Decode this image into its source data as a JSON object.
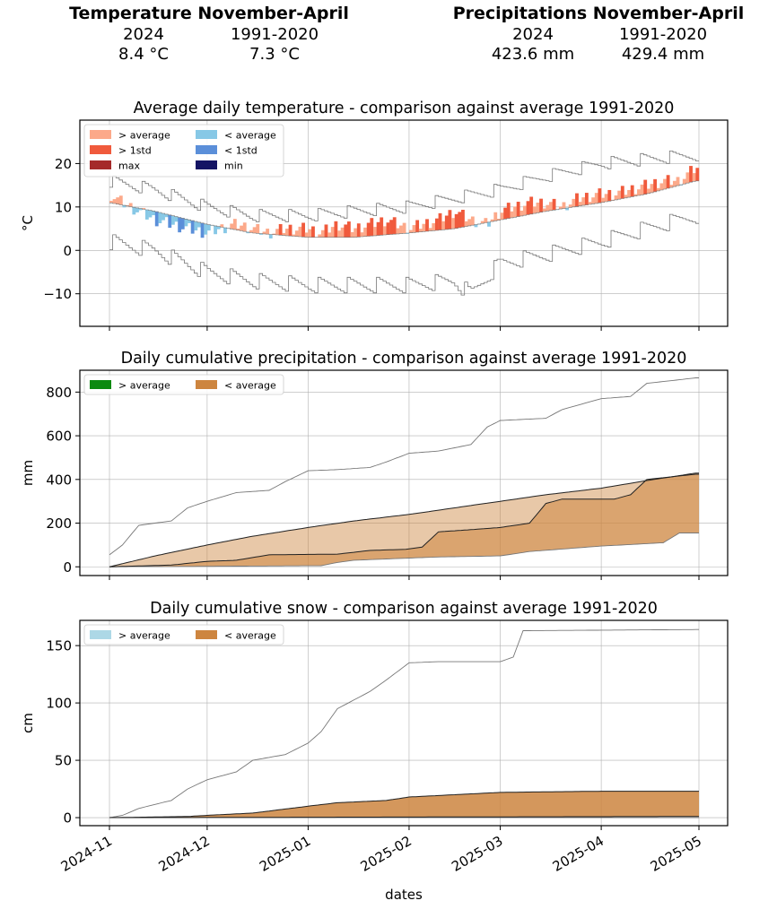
{
  "summary": {
    "temperature": {
      "heading": "Temperature November-April",
      "col1": "2024",
      "col2": "1991-2020",
      "val1": "8.4 °C",
      "val2": "7.3 °C"
    },
    "precipitation": {
      "heading": "Precipitations November-April",
      "col1": "2024",
      "col2": "1991-2020",
      "val1": "423.6 mm",
      "val2": "429.4 mm"
    }
  },
  "xaxis": {
    "label": "dates",
    "ticks": [
      "2024-11",
      "2024-12",
      "2025-01",
      "2025-02",
      "2025-03",
      "2025-04",
      "2025-05"
    ]
  },
  "colors": {
    "above_avg": "#fca98a",
    "above_std": "#f05a3c",
    "max": "#a52a2a",
    "below_avg": "#87c8e6",
    "below_std": "#5b8fd9",
    "min": "#141464",
    "prec_above": "#0b8a10",
    "prec_below": "#cd853f",
    "snow_above": "#add8e6",
    "snow_below": "#cd853f"
  },
  "chart_data": [
    {
      "type": "line",
      "title": "Average daily temperature - comparison against average 1991-2020",
      "xlabel": "",
      "ylabel": "°C",
      "ylim": [
        -17.5,
        30
      ],
      "yticks": [
        -10,
        0,
        10,
        20
      ],
      "legend": [
        "> average",
        "> 1std",
        "max",
        "< average",
        "< 1std",
        "min"
      ],
      "legend_position": "top-left",
      "grid": true,
      "x_start": "2024-11-01",
      "x_end": "2025-04-30",
      "series": [
        {
          "name": "2024",
          "points": [
            [
              "2024-11-01",
              13
            ],
            [
              "2024-11-05",
              11
            ],
            [
              "2024-11-10",
              9
            ],
            [
              "2024-11-15",
              7
            ],
            [
              "2024-11-20",
              6
            ],
            [
              "2024-11-25",
              5
            ],
            [
              "2024-12-01",
              4
            ],
            [
              "2024-12-05",
              5
            ],
            [
              "2024-12-10",
              6
            ],
            [
              "2024-12-15",
              5
            ],
            [
              "2024-12-20",
              4
            ],
            [
              "2024-12-25",
              5
            ],
            [
              "2025-01-01",
              5
            ],
            [
              "2025-01-05",
              4
            ],
            [
              "2025-01-10",
              6
            ],
            [
              "2025-01-15",
              5
            ],
            [
              "2025-01-20",
              6
            ],
            [
              "2025-01-25",
              7
            ],
            [
              "2025-02-01",
              5
            ],
            [
              "2025-02-05",
              6
            ],
            [
              "2025-02-10",
              7
            ],
            [
              "2025-02-15",
              9
            ],
            [
              "2025-02-20",
              7
            ],
            [
              "2025-02-25",
              6
            ],
            [
              "2025-03-01",
              9
            ],
            [
              "2025-03-05",
              10
            ],
            [
              "2025-03-10",
              11
            ],
            [
              "2025-03-15",
              11
            ],
            [
              "2025-03-20",
              10
            ],
            [
              "2025-03-25",
              12
            ],
            [
              "2025-04-01",
              13
            ],
            [
              "2025-04-05",
              13
            ],
            [
              "2025-04-10",
              14
            ],
            [
              "2025-04-15",
              15
            ],
            [
              "2025-04-20",
              16
            ],
            [
              "2025-04-25",
              16
            ],
            [
              "2025-04-30",
              19
            ]
          ]
        },
        {
          "name": "average 1991-2020",
          "points": [
            [
              "2024-11-01",
              11
            ],
            [
              "2024-11-15",
              9
            ],
            [
              "2024-12-01",
              6
            ],
            [
              "2024-12-15",
              4
            ],
            [
              "2025-01-01",
              3
            ],
            [
              "2025-01-15",
              3
            ],
            [
              "2025-02-01",
              4
            ],
            [
              "2025-02-15",
              5
            ],
            [
              "2025-03-01",
              7
            ],
            [
              "2025-03-15",
              9
            ],
            [
              "2025-04-01",
              11
            ],
            [
              "2025-04-15",
              13
            ],
            [
              "2025-04-30",
              16
            ]
          ]
        },
        {
          "name": "max",
          "points": [
            [
              "2024-11-01",
              16
            ],
            [
              "2024-11-15",
              14
            ],
            [
              "2024-12-01",
              10
            ],
            [
              "2024-12-15",
              8
            ],
            [
              "2025-01-01",
              8
            ],
            [
              "2025-01-15",
              9
            ],
            [
              "2025-02-01",
              10
            ],
            [
              "2025-02-15",
              12
            ],
            [
              "2025-03-01",
              14
            ],
            [
              "2025-03-15",
              17
            ],
            [
              "2025-04-01",
              20
            ],
            [
              "2025-04-15",
              21
            ],
            [
              "2025-04-30",
              22
            ]
          ]
        },
        {
          "name": "min",
          "points": [
            [
              "2024-11-01",
              2
            ],
            [
              "2024-11-15",
              0
            ],
            [
              "2024-12-01",
              -5
            ],
            [
              "2024-12-15",
              -7
            ],
            [
              "2025-01-01",
              -8
            ],
            [
              "2025-01-15",
              -8
            ],
            [
              "2025-02-01",
              -8
            ],
            [
              "2025-02-15",
              -7
            ],
            [
              "2025-02-20",
              -10
            ],
            [
              "2025-03-01",
              -3
            ],
            [
              "2025-03-15",
              -1
            ],
            [
              "2025-04-01",
              2
            ],
            [
              "2025-04-15",
              5
            ],
            [
              "2025-04-30",
              8
            ]
          ]
        }
      ]
    },
    {
      "type": "area",
      "title": "Daily cumulative precipitation - comparison against average 1991-2020",
      "xlabel": "",
      "ylabel": "mm",
      "ylim": [
        -40,
        900
      ],
      "yticks": [
        0,
        200,
        400,
        600,
        800
      ],
      "legend": [
        "> average",
        "< average"
      ],
      "legend_position": "top-left",
      "grid": true,
      "x_start": "2024-11-01",
      "x_end": "2025-04-30",
      "series": [
        {
          "name": "2024",
          "points": [
            [
              "2024-11-01",
              0
            ],
            [
              "2024-11-20",
              8
            ],
            [
              "2024-12-01",
              25
            ],
            [
              "2024-12-10",
              30
            ],
            [
              "2024-12-20",
              55
            ],
            [
              "2025-01-10",
              58
            ],
            [
              "2025-01-20",
              75
            ],
            [
              "2025-01-31",
              80
            ],
            [
              "2025-02-05",
              90
            ],
            [
              "2025-02-10",
              160
            ],
            [
              "2025-02-20",
              170
            ],
            [
              "2025-03-01",
              180
            ],
            [
              "2025-03-10",
              200
            ],
            [
              "2025-03-15",
              290
            ],
            [
              "2025-03-20",
              310
            ],
            [
              "2025-04-05",
              310
            ],
            [
              "2025-04-10",
              330
            ],
            [
              "2025-04-15",
              400
            ],
            [
              "2025-04-30",
              424
            ]
          ]
        },
        {
          "name": "average 1991-2020",
          "points": [
            [
              "2024-11-01",
              0
            ],
            [
              "2024-11-15",
              50
            ],
            [
              "2024-12-01",
              100
            ],
            [
              "2024-12-15",
              140
            ],
            [
              "2025-01-01",
              180
            ],
            [
              "2025-01-15",
              210
            ],
            [
              "2025-02-01",
              240
            ],
            [
              "2025-02-15",
              270
            ],
            [
              "2025-03-01",
              300
            ],
            [
              "2025-03-15",
              330
            ],
            [
              "2025-04-01",
              360
            ],
            [
              "2025-04-15",
              395
            ],
            [
              "2025-04-30",
              429
            ]
          ]
        },
        {
          "name": "max",
          "points": [
            [
              "2024-11-01",
              55
            ],
            [
              "2024-11-05",
              100
            ],
            [
              "2024-11-10",
              190
            ],
            [
              "2024-11-20",
              210
            ],
            [
              "2024-11-25",
              270
            ],
            [
              "2024-12-01",
              300
            ],
            [
              "2024-12-10",
              340
            ],
            [
              "2024-12-20",
              350
            ],
            [
              "2024-12-25",
              390
            ],
            [
              "2025-01-01",
              440
            ],
            [
              "2025-01-10",
              445
            ],
            [
              "2025-01-20",
              455
            ],
            [
              "2025-01-25",
              480
            ],
            [
              "2025-02-01",
              520
            ],
            [
              "2025-02-10",
              530
            ],
            [
              "2025-02-20",
              560
            ],
            [
              "2025-02-25",
              640
            ],
            [
              "2025-03-01",
              670
            ],
            [
              "2025-03-15",
              680
            ],
            [
              "2025-03-20",
              720
            ],
            [
              "2025-04-01",
              770
            ],
            [
              "2025-04-10",
              780
            ],
            [
              "2025-04-15",
              840
            ],
            [
              "2025-04-30",
              865
            ]
          ]
        },
        {
          "name": "min",
          "points": [
            [
              "2024-11-01",
              0
            ],
            [
              "2025-01-05",
              5
            ],
            [
              "2025-01-10",
              20
            ],
            [
              "2025-01-15",
              30
            ],
            [
              "2025-02-01",
              40
            ],
            [
              "2025-02-10",
              45
            ],
            [
              "2025-03-01",
              50
            ],
            [
              "2025-03-10",
              70
            ],
            [
              "2025-04-01",
              95
            ],
            [
              "2025-04-20",
              110
            ],
            [
              "2025-04-25",
              155
            ],
            [
              "2025-04-30",
              155
            ]
          ]
        }
      ]
    },
    {
      "type": "area",
      "title": "Daily cumulative snow - comparison against average 1991-2020",
      "xlabel": "dates",
      "ylabel": "cm",
      "ylim": [
        -7,
        172
      ],
      "yticks": [
        0,
        50,
        100,
        150
      ],
      "legend": [
        "> average",
        "< average"
      ],
      "legend_position": "top-left",
      "grid": true,
      "x_start": "2024-11-01",
      "x_end": "2025-04-30",
      "series": [
        {
          "name": "2024",
          "points": [
            [
              "2024-11-01",
              0
            ],
            [
              "2025-04-30",
              1
            ]
          ]
        },
        {
          "name": "average 1991-2020",
          "points": [
            [
              "2024-11-01",
              0
            ],
            [
              "2024-11-25",
              1
            ],
            [
              "2024-12-01",
              2
            ],
            [
              "2024-12-15",
              4
            ],
            [
              "2025-01-01",
              10
            ],
            [
              "2025-01-10",
              13
            ],
            [
              "2025-01-25",
              15
            ],
            [
              "2025-02-01",
              18
            ],
            [
              "2025-02-15",
              20
            ],
            [
              "2025-03-01",
              22
            ],
            [
              "2025-03-15",
              22.5
            ],
            [
              "2025-04-01",
              23
            ],
            [
              "2025-04-30",
              23
            ]
          ]
        },
        {
          "name": "max",
          "points": [
            [
              "2024-11-01",
              0
            ],
            [
              "2024-11-05",
              2
            ],
            [
              "2024-11-10",
              8
            ],
            [
              "2024-11-20",
              15
            ],
            [
              "2024-11-25",
              25
            ],
            [
              "2024-12-01",
              33
            ],
            [
              "2024-12-10",
              40
            ],
            [
              "2024-12-15",
              50
            ],
            [
              "2024-12-25",
              55
            ],
            [
              "2025-01-01",
              65
            ],
            [
              "2025-01-05",
              75
            ],
            [
              "2025-01-10",
              95
            ],
            [
              "2025-01-20",
              110
            ],
            [
              "2025-01-25",
              120
            ],
            [
              "2025-02-01",
              135
            ],
            [
              "2025-02-10",
              136
            ],
            [
              "2025-03-01",
              136
            ],
            [
              "2025-03-05",
              140
            ],
            [
              "2025-03-08",
              163
            ],
            [
              "2025-04-30",
              164
            ]
          ]
        },
        {
          "name": "min",
          "points": [
            [
              "2024-11-01",
              0
            ],
            [
              "2025-04-30",
              0
            ]
          ]
        }
      ]
    }
  ]
}
